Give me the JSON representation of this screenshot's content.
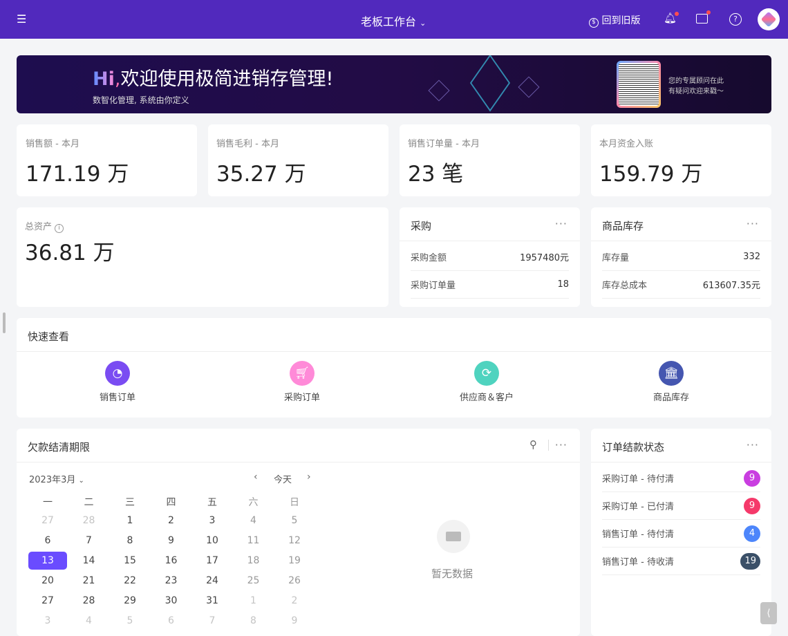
{
  "header": {
    "title": "老板工作台",
    "old_version": "回到旧版"
  },
  "banner": {
    "hi": "Hi",
    "comma": ",",
    "headline": "欢迎使用极简进销存管理!",
    "subtitle": "数智化管理, 系统由你定义",
    "advisor_line1": "您的专属顾问在此",
    "advisor_line2": "有疑问欢迎来戳～"
  },
  "stats": [
    {
      "label": "销售额 - 本月",
      "value": "171.19 万"
    },
    {
      "label": "销售毛利 - 本月",
      "value": "35.27 万"
    },
    {
      "label": "销售订单量 - 本月",
      "value": "23 笔"
    },
    {
      "label": "本月资金入账",
      "value": "159.79 万"
    }
  ],
  "assets": {
    "label": "总资产",
    "value": "36.81 万"
  },
  "purchase": {
    "title": "采购",
    "rows": [
      {
        "label": "采购金额",
        "value": "1957480元"
      },
      {
        "label": "采购订单量",
        "value": "18"
      }
    ]
  },
  "inventory": {
    "title": "商品库存",
    "rows": [
      {
        "label": "库存量",
        "value": "332"
      },
      {
        "label": "库存总成本",
        "value": "613607.35元"
      }
    ]
  },
  "quick": {
    "title": "快速查看",
    "items": [
      {
        "label": "销售订单",
        "icon": "pie-chart-icon",
        "color": "#7a4cf2"
      },
      {
        "label": "采购订单",
        "icon": "cart-icon",
        "color": "#ff8ad8"
      },
      {
        "label": "供应商＆客户",
        "icon": "refresh-icon",
        "color": "#4fd3bf"
      },
      {
        "label": "商品库存",
        "icon": "bank-icon",
        "color": "#4556b0"
      }
    ]
  },
  "debt": {
    "title": "欠款结清期限",
    "month": "2023年3月",
    "today": "今天",
    "empty": "暂无数据",
    "weekdays": [
      "一",
      "二",
      "三",
      "四",
      "五",
      "六",
      "日"
    ],
    "weeks": [
      [
        "27",
        "28",
        "1",
        "2",
        "3",
        "4",
        "5"
      ],
      [
        "6",
        "7",
        "8",
        "9",
        "10",
        "11",
        "12"
      ],
      [
        "13",
        "14",
        "15",
        "16",
        "17",
        "18",
        "19"
      ],
      [
        "20",
        "21",
        "22",
        "23",
        "24",
        "25",
        "26"
      ],
      [
        "27",
        "28",
        "29",
        "30",
        "31",
        "1",
        "2"
      ],
      [
        "3",
        "4",
        "5",
        "6",
        "7",
        "8",
        "9"
      ]
    ],
    "selected": "13",
    "accent": "#6a4cff"
  },
  "order_status": {
    "title": "订单结款状态",
    "items": [
      {
        "label": "采购订单 - 待付清",
        "count": "9",
        "color": "#c93ee0"
      },
      {
        "label": "采购订单 - 已付清",
        "count": "9",
        "color": "#f5396a"
      },
      {
        "label": "销售订单 - 待付清",
        "count": "4",
        "color": "#4d86fb"
      },
      {
        "label": "销售订单 - 待收清",
        "count": "19",
        "color": "#3b5068"
      }
    ]
  }
}
